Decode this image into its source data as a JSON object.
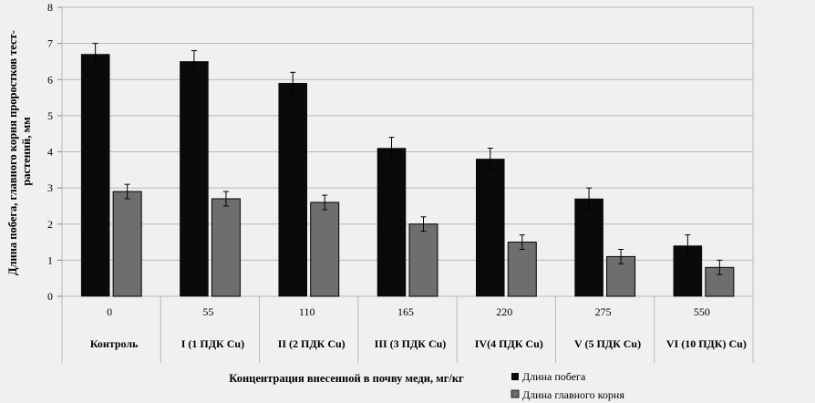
{
  "chart_data": {
    "type": "bar",
    "x": [
      "0",
      "55",
      "110",
      "165",
      "220",
      "275",
      "550"
    ],
    "categories": [
      "Контроль",
      "I (1  ПДК Cu)",
      "II (2 ПДК Cu)",
      "III (3 ПДК Cu)",
      "IV(4 ПДК Cu)",
      "V (5 ПДК Cu)",
      "VI (10 ПДК) Cu)"
    ],
    "series": [
      {
        "name": "Длина побега",
        "values": [
          6.7,
          6.5,
          5.9,
          4.1,
          3.8,
          2.7,
          1.4
        ],
        "errors": [
          0.3,
          0.3,
          0.3,
          0.3,
          0.3,
          0.3,
          0.3
        ],
        "color": "#0a0a0a"
      },
      {
        "name": "Длина главного корня",
        "values": [
          2.9,
          2.7,
          2.6,
          2.0,
          1.5,
          1.1,
          0.8
        ],
        "errors": [
          0.2,
          0.2,
          0.2,
          0.2,
          0.2,
          0.2,
          0.2
        ],
        "color": "#6e6e6e"
      }
    ],
    "yticks": [
      "0",
      "1",
      "2",
      "3",
      "4",
      "5",
      "6",
      "7",
      "8"
    ],
    "ylim": [
      0,
      8
    ],
    "xlabel": "Концентрация внесенной в почву меди, мг/кг",
    "ylabel_lines": [
      "Длина побега, главного корня проростков тест-",
      "растений, мм"
    ],
    "grid": true,
    "legend_position": "bottom-right"
  }
}
